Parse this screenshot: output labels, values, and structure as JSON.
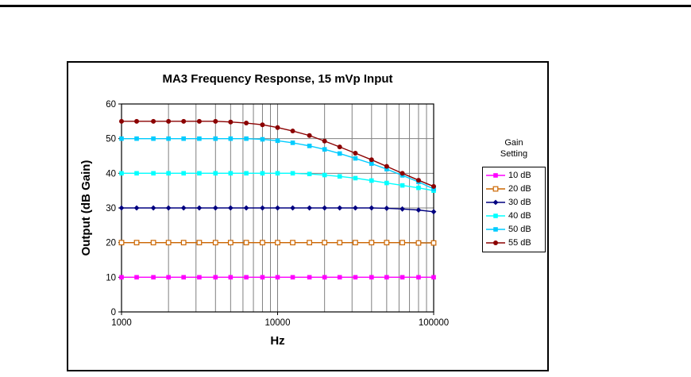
{
  "page": {
    "background": "#FFFFFF"
  },
  "top_rule": {
    "color": "#000000"
  },
  "chart_data": {
    "type": "line",
    "title": "MA3 Frequency Response, 15 mVp Input",
    "xlabel": "Hz",
    "ylabel": "Output (dB Gain)",
    "x_scale": "log",
    "xlim": [
      1000,
      100000
    ],
    "ylim": [
      0,
      60
    ],
    "x_ticks": [
      1000,
      10000,
      100000
    ],
    "y_ticks": [
      0,
      10,
      20,
      30,
      40,
      50,
      60
    ],
    "grid": true,
    "grid_color": "#808080",
    "legend_position": "right",
    "legend_title_lines": [
      "Gain",
      "Setting"
    ],
    "x": [
      1000,
      1250,
      1600,
      2000,
      2500,
      3150,
      4000,
      5000,
      6300,
      8000,
      10000,
      12500,
      16000,
      20000,
      25000,
      31500,
      40000,
      50000,
      63000,
      80000,
      100000
    ],
    "series": [
      {
        "name": "10 dB",
        "color": "#FF00FF",
        "marker": "square",
        "values": [
          10,
          10,
          10,
          10,
          10,
          10,
          10,
          10,
          10,
          10,
          10,
          10,
          10,
          10,
          10,
          10,
          10,
          10,
          10,
          10,
          10
        ]
      },
      {
        "name": "20 dB",
        "color": "#CC6600",
        "marker": "square-open",
        "values": [
          20,
          20,
          20,
          20,
          20,
          20,
          20,
          20,
          20,
          20,
          20,
          20,
          20,
          20,
          20,
          20,
          20,
          20,
          20,
          19.9,
          19.9
        ]
      },
      {
        "name": "30 dB",
        "color": "#000080",
        "marker": "diamond",
        "values": [
          30,
          30,
          30,
          30,
          30,
          30,
          30,
          30,
          30,
          30,
          30,
          30,
          30,
          30,
          30,
          30,
          30,
          29.9,
          29.7,
          29.4,
          28.9
        ]
      },
      {
        "name": "40 dB",
        "color": "#00FFFF",
        "marker": "square",
        "values": [
          40,
          40,
          40,
          40,
          40,
          40,
          40,
          40,
          40,
          40,
          40,
          40,
          39.8,
          39.5,
          39.1,
          38.6,
          37.9,
          37.2,
          36.5,
          35.8,
          35.0
        ]
      },
      {
        "name": "50 dB",
        "color": "#00CCFF",
        "marker": "square",
        "values": [
          50,
          50,
          50,
          50,
          50,
          50,
          50,
          50,
          50,
          49.8,
          49.4,
          48.8,
          47.9,
          46.9,
          45.7,
          44.3,
          42.8,
          41.2,
          39.4,
          37.5,
          35.5
        ]
      },
      {
        "name": "55 dB",
        "color": "#8B0000",
        "marker": "circle",
        "values": [
          55,
          55,
          55,
          55,
          55,
          55,
          55,
          54.8,
          54.5,
          54.0,
          53.2,
          52.2,
          50.9,
          49.3,
          47.6,
          45.8,
          43.9,
          42.0,
          40.0,
          38.0,
          36.2
        ]
      }
    ]
  }
}
